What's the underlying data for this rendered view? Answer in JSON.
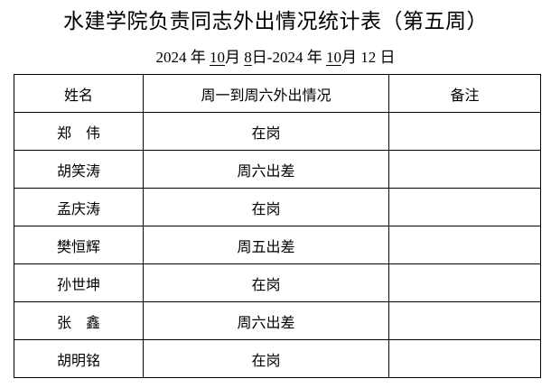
{
  "title": "水建学院负责同志外出情况统计表（第五周）",
  "date": {
    "y1": "2024",
    "m1": "10",
    "d1": "8",
    "y2": "2024",
    "m2": "10",
    "d2": "12",
    "year_char": "年",
    "month_char": "月",
    "day_char": "日",
    "sep": "-"
  },
  "table": {
    "headers": [
      "姓名",
      "周一到周六外出情况",
      "备注"
    ],
    "rows": [
      {
        "name": "郑　伟",
        "status": "在岗",
        "note": ""
      },
      {
        "name": "胡笑涛",
        "status": "周六出差",
        "note": ""
      },
      {
        "name": "孟庆涛",
        "status": "在岗",
        "note": ""
      },
      {
        "name": "樊恒辉",
        "status": "周五出差",
        "note": ""
      },
      {
        "name": "孙世坤",
        "status": "在岗",
        "note": ""
      },
      {
        "name": "张　鑫",
        "status": "周六出差",
        "note": ""
      },
      {
        "name": "胡明铭",
        "status": "在岗",
        "note": ""
      }
    ]
  }
}
